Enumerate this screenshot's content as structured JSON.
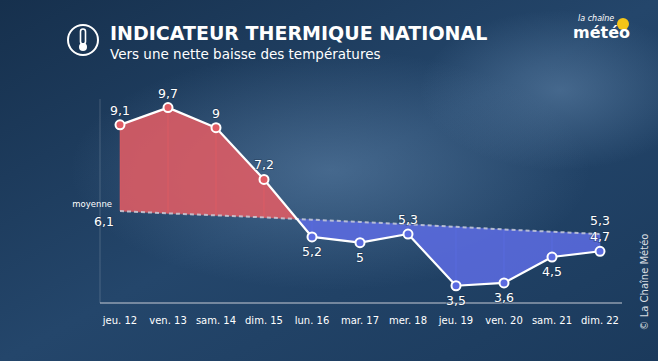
{
  "chart_data": {
    "type": "line",
    "title": "INDICATEUR THERMIQUE NATIONAL",
    "subtitle": "Vers une nette baisse des températures",
    "categories": [
      "jeu. 12",
      "ven. 13",
      "sam. 14",
      "dim. 15",
      "lun. 16",
      "mar. 17",
      "mer. 18",
      "jeu. 19",
      "ven. 20",
      "sam. 21",
      "dim. 22"
    ],
    "series": [
      {
        "color": "#ffffff",
        "marker": "circle",
        "colors": [
          "#e05c64",
          "#e05c64",
          "#e05c64",
          "#e05c64",
          "#5b6be0",
          "#5b6be0",
          "#5b6be0",
          "#5b6be0",
          "#5b6be0",
          "#5b6be0",
          "#5b6be0"
        ],
        "values": [
          9.1,
          9.7,
          9,
          7.2,
          5.2,
          5,
          5.3,
          3.5,
          3.6,
          4.5,
          4.7
        ],
        "value_labels": [
          "9,1",
          "9,7",
          "9",
          "7,2",
          "5,2",
          "5",
          "5,3",
          "3,5",
          "3,6",
          "4,5",
          "4,7"
        ]
      },
      {
        "name": "moyenne",
        "color": "#c9cdd8",
        "line_style": "dashed",
        "values": [
          6.1,
          6.02,
          5.95,
          5.88,
          5.8,
          5.72,
          5.64,
          5.55,
          5.46,
          5.38,
          5.3
        ],
        "value_labels": [
          "6,1",
          null,
          null,
          null,
          null,
          null,
          null,
          null,
          null,
          null,
          "5,3"
        ]
      }
    ],
    "ylim": [
      2.9,
      10
    ],
    "data_labels": true,
    "tick_labels": "x",
    "grid": false
  },
  "logo": {
    "top": "la chaîne",
    "bottom": "météo"
  },
  "credit": "© La Chaîne Météo"
}
